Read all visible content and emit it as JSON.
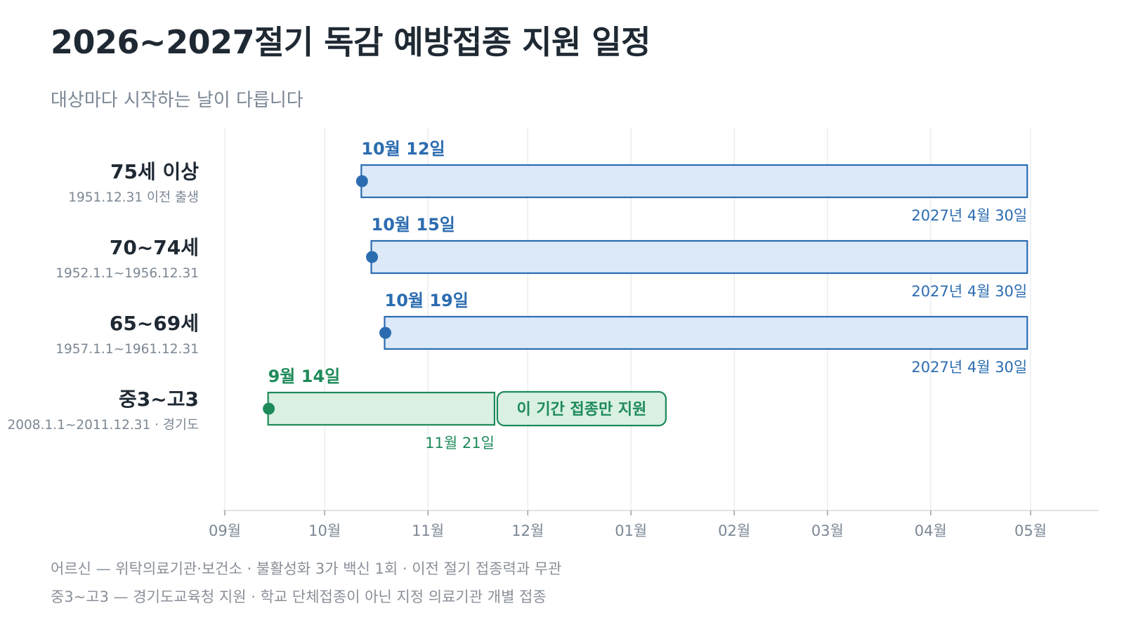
{
  "title": "2026~2027절기 독감 예방접종 지원 일정",
  "subtitle": "대상마다 시작하는 날이 다릅니다",
  "chart_data": {
    "type": "gantt",
    "x_ticks": [
      "09월",
      "10월",
      "11월",
      "12월",
      "01월",
      "02월",
      "03월",
      "04월",
      "05월"
    ],
    "x_range": [
      "2026-09-01",
      "2027-05-01"
    ],
    "grid": true,
    "rows": [
      {
        "label": "75세 이상",
        "sublabel": "1951.12.31 이전 출생",
        "start": "2026-10-12",
        "end": "2027-04-30",
        "start_label": "10월 12일",
        "end_label": "2027년 4월 30일",
        "color": "#2b6cb0",
        "fill": "#dce9f9"
      },
      {
        "label": "70~74세",
        "sublabel": "1952.1.1~1956.12.31",
        "start": "2026-10-15",
        "end": "2027-04-30",
        "start_label": "10월 15일",
        "end_label": "2027년 4월 30일",
        "color": "#2b6cb0",
        "fill": "#dce9f9"
      },
      {
        "label": "65~69세",
        "sublabel": "1957.1.1~1961.12.31",
        "start": "2026-10-19",
        "end": "2027-04-30",
        "start_label": "10월 19일",
        "end_label": "2027년 4월 30일",
        "color": "#2b6cb0",
        "fill": "#dce9f9"
      },
      {
        "label": "중3~고3",
        "sublabel": "2008.1.1~2011.12.31 · 경기도",
        "start": "2026-09-14",
        "end": "2026-11-21",
        "start_label": "9월 14일",
        "end_label": "11월 21일",
        "badge": "이 기간 접종만 지원",
        "color": "#1e8a5a",
        "fill": "#d9f0e2"
      }
    ]
  },
  "footnotes": [
    "어르신 — 위탁의료기관·보건소 · 불활성화 3가 백신 1회 · 이전 절기 접종력과 무관",
    "중3~고3 — 경기도교육청 지원 · 학교 단체접종이 아닌 지정 의료기관 개별 접종"
  ]
}
